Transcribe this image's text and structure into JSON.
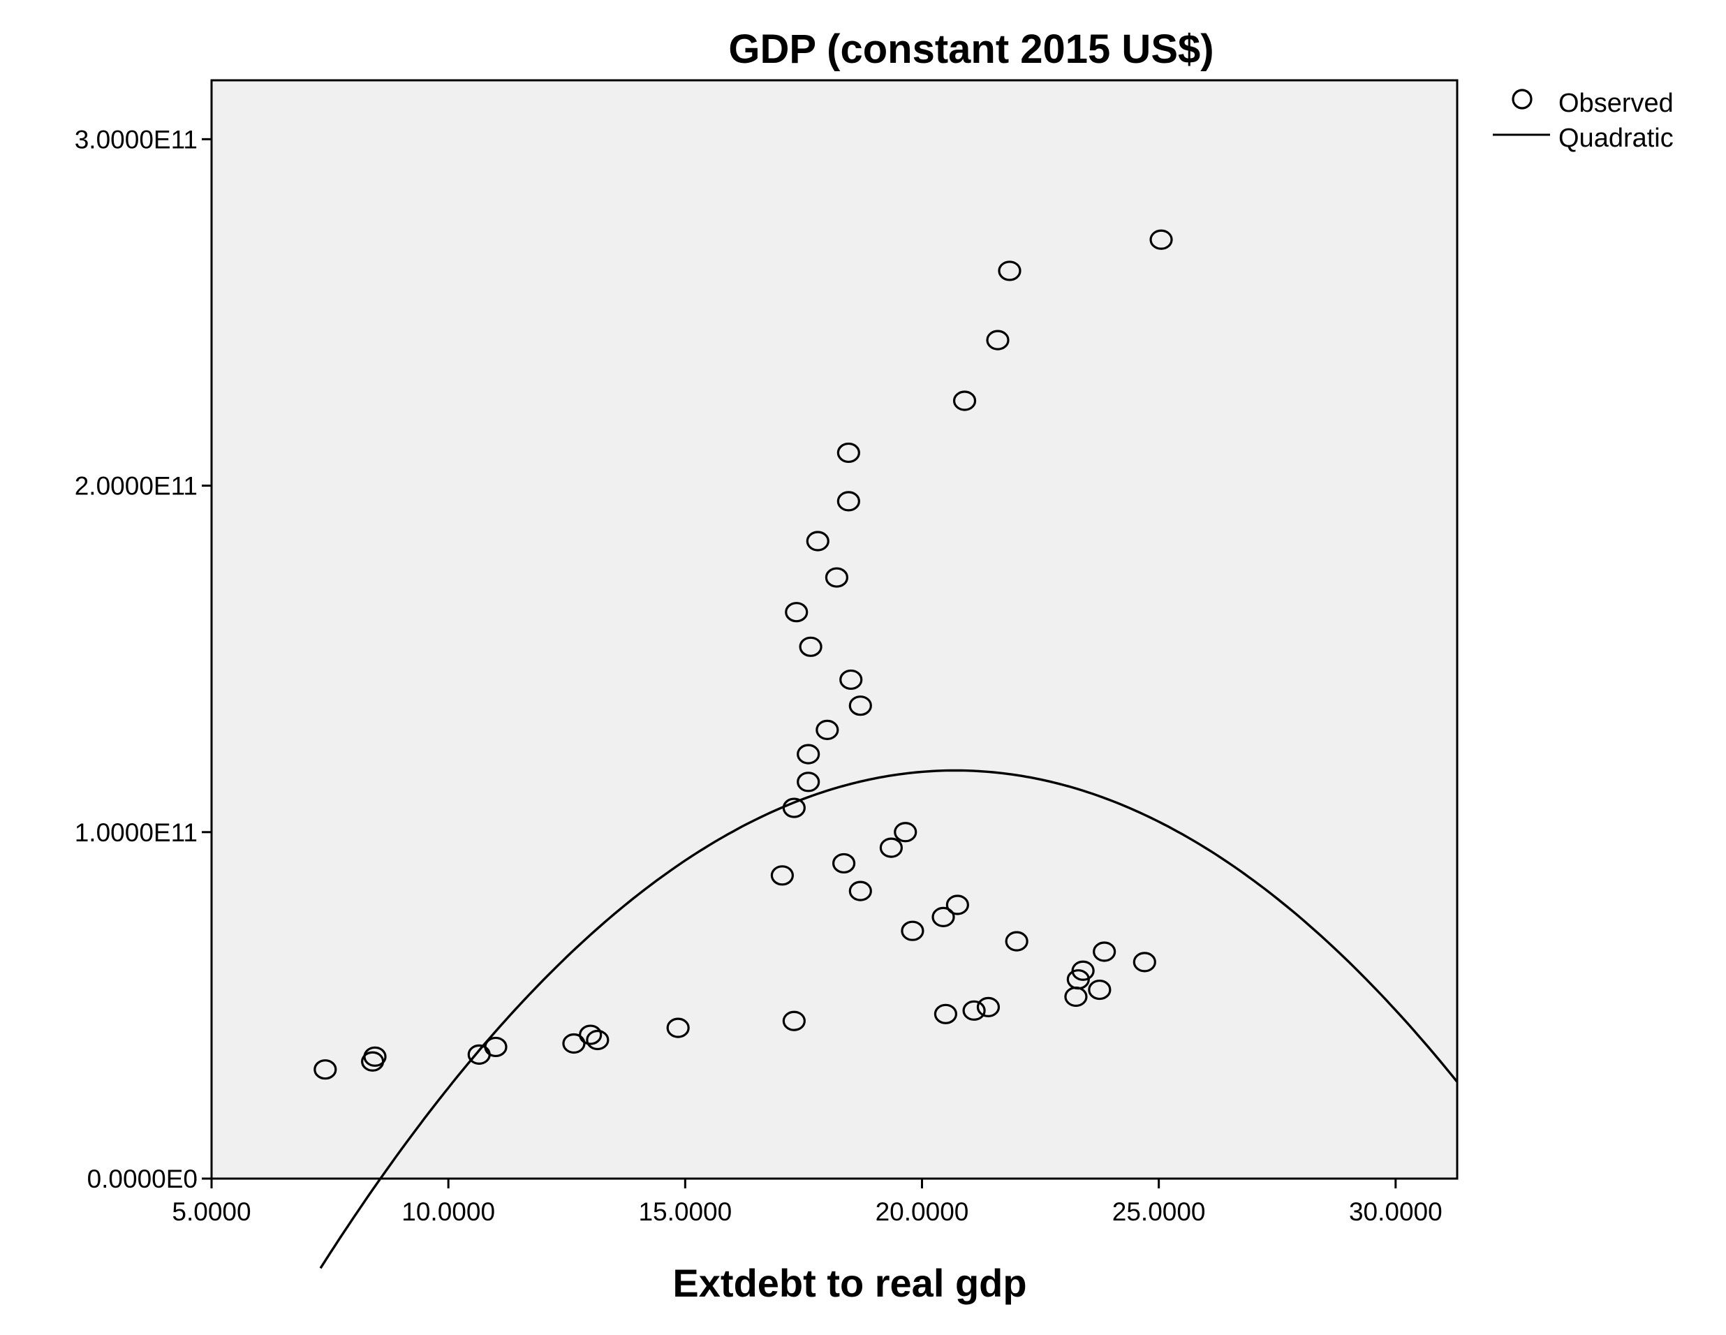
{
  "chart_data": {
    "type": "scatter",
    "title": "GDP (constant 2015 US$)",
    "xlabel": "Extdebt to real gdp",
    "ylabel": "",
    "xlim": [
      5.0,
      31.3
    ],
    "ylim": [
      0,
      317000000000.0
    ],
    "x_ticks": [
      5,
      10,
      15,
      20,
      25,
      30
    ],
    "x_tick_labels": [
      "5.0000",
      "10.0000",
      "15.0000",
      "20.0000",
      "25.0000",
      "30.0000"
    ],
    "y_ticks": [
      0,
      100000000000.0,
      200000000000.0,
      300000000000.0
    ],
    "y_tick_labels": [
      "0.0000E0",
      "1.0000E11",
      "2.0000E11",
      "3.0000E11"
    ],
    "grid": false,
    "legend_position": "top-right",
    "colors": {
      "plot_background": "#f0f0f0",
      "marks": "#000000"
    },
    "series": [
      {
        "name": "Observed",
        "kind": "scatter",
        "points": [
          [
            7.4,
            31.5
          ],
          [
            8.4,
            33.8
          ],
          [
            8.45,
            35.2
          ],
          [
            10.65,
            35.8
          ],
          [
            11.0,
            38.0
          ],
          [
            12.65,
            39.0
          ],
          [
            13.0,
            41.5
          ],
          [
            13.15,
            40.0
          ],
          [
            14.85,
            43.5
          ],
          [
            17.3,
            45.5
          ],
          [
            20.5,
            47.5
          ],
          [
            21.1,
            48.5
          ],
          [
            21.4,
            49.5
          ],
          [
            23.25,
            52.5
          ],
          [
            23.75,
            54.5
          ],
          [
            23.3,
            57.5
          ],
          [
            23.4,
            60.0
          ],
          [
            23.85,
            65.5
          ],
          [
            24.7,
            62.5
          ],
          [
            22.0,
            68.5
          ],
          [
            19.8,
            71.5
          ],
          [
            20.45,
            75.5
          ],
          [
            20.75,
            79.0
          ],
          [
            18.7,
            83.0
          ],
          [
            17.05,
            87.5
          ],
          [
            18.35,
            91.0
          ],
          [
            19.35,
            95.5
          ],
          [
            19.65,
            100.0
          ],
          [
            17.3,
            107.0
          ],
          [
            17.6,
            114.5
          ],
          [
            17.6,
            122.5
          ],
          [
            18.0,
            129.5
          ],
          [
            18.7,
            136.5
          ],
          [
            18.5,
            144.0
          ],
          [
            17.65,
            153.5
          ],
          [
            17.35,
            163.5
          ],
          [
            18.2,
            173.5
          ],
          [
            17.8,
            184.0
          ],
          [
            18.45,
            195.5
          ],
          [
            18.45,
            209.5
          ],
          [
            20.9,
            224.5
          ],
          [
            21.6,
            242.0
          ],
          [
            21.85,
            262.0
          ],
          [
            25.05,
            271.0
          ]
        ],
        "y_scale": 1000000000.0
      },
      {
        "name": "Quadratic",
        "kind": "line",
        "equation": "y = -0.8 * (x - 20.7)^2 + 117.8",
        "y_scale": 1000000000.0,
        "x_range": [
          7.3,
          31.3
        ]
      }
    ]
  }
}
